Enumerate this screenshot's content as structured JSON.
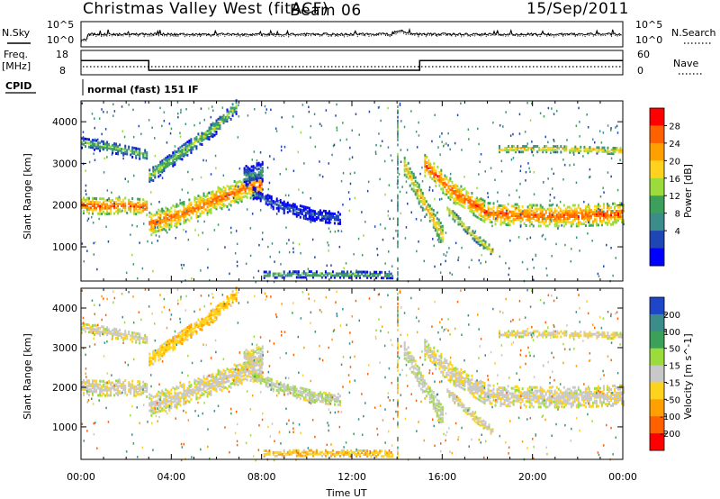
{
  "header": {
    "station": "Christmas Valley West (fitACF)",
    "beam": "Beam 06",
    "date": "15/Sep/2011"
  },
  "status_panels": {
    "nsky_label": "N.Sky",
    "nsearch_label": "N.Search",
    "freq_label_top": "Freq.",
    "freq_label_bottom": "[MHz]",
    "nave_label": "Nave",
    "cpid_label": "CPID",
    "cpid_value": "normal (fast) 151 IF",
    "noise_ticks": [
      "10^5",
      "10^0"
    ],
    "freq_ticks": [
      "18",
      "8"
    ],
    "nave_ticks": [
      "60",
      "0"
    ],
    "freq_step_hours": [
      0,
      3.0,
      15.0,
      24
    ],
    "freq_values_mhz": [
      16.2,
      10.2,
      16.2
    ]
  },
  "axes": {
    "xlabel": "Time UT",
    "x_ticks": [
      "00:00",
      "04:00",
      "08:00",
      "12:00",
      "16:00",
      "20:00",
      "00:00"
    ],
    "ylabel": "Slant Range [km]",
    "y_ticks": [
      "1000",
      "2000",
      "3000",
      "4000"
    ]
  },
  "power_colorbar": {
    "label": "Power [dB]",
    "ticks": [
      "28",
      "24",
      "20",
      "16",
      "12",
      "8",
      "4"
    ],
    "colors": [
      "#ff0000",
      "#ff6000",
      "#ffa000",
      "#ffd21e",
      "#9bdc3c",
      "#3ca05a",
      "#3c8c8c",
      "#1e46b4",
      "#0000ff"
    ]
  },
  "velocity_colorbar": {
    "label": "Velocity [m s^-1]",
    "ticks": [
      "200",
      "100",
      "50",
      "15",
      "-15",
      "-50",
      "-100",
      "-200"
    ],
    "colors": [
      "#1e46c8",
      "#3c8c8c",
      "#3ca05a",
      "#9bdc3c",
      "#c8c8c8",
      "#ffd21e",
      "#ffa000",
      "#ff6000",
      "#ff0000"
    ]
  },
  "chart_data": {
    "type": "heatmap",
    "x_range_hours": [
      0,
      24
    ],
    "y_range_km": [
      180,
      4500
    ],
    "series": [
      {
        "kind": "band",
        "hours": [
          0.0,
          1.0,
          2.0,
          2.9
        ],
        "center_km": [
          2000,
          1980,
          2000,
          1950
        ],
        "width_km": 380,
        "power": 27,
        "velocity": -5
      },
      {
        "kind": "band",
        "hours": [
          0.0,
          1.2,
          2.9
        ],
        "center_km": [
          3500,
          3400,
          3200
        ],
        "width_km": 250,
        "power": 14,
        "velocity": -5
      },
      {
        "kind": "band",
        "hours": [
          3.0,
          4.5,
          6.0,
          7.5,
          8.0
        ],
        "center_km": [
          1550,
          1800,
          2150,
          2450,
          2500
        ],
        "width_km": 550,
        "power": 26,
        "velocity": -5
      },
      {
        "kind": "band",
        "hours": [
          3.0,
          4.5,
          6.0,
          6.9
        ],
        "center_km": [
          2700,
          3300,
          3900,
          4400
        ],
        "width_km": 350,
        "power": 15,
        "velocity": -40
      },
      {
        "kind": "band",
        "hours": [
          7.2,
          8.0
        ],
        "center_km": [
          2700,
          2800
        ],
        "width_km": 450,
        "power": 10,
        "velocity": -5
      },
      {
        "kind": "band",
        "hours": [
          7.6,
          8.3,
          9.0,
          10.5,
          11.5
        ],
        "center_km": [
          2300,
          2100,
          1950,
          1750,
          1700
        ],
        "width_km": 300,
        "power": 6,
        "velocity": 10
      },
      {
        "kind": "band",
        "hours": [
          14.3,
          15.0,
          16.0
        ],
        "center_km": [
          2950,
          2200,
          1250
        ],
        "width_km": 450,
        "power": 22,
        "velocity": 10
      },
      {
        "kind": "band",
        "hours": [
          15.2,
          16.5,
          18.0,
          20.0,
          22.0,
          24.0
        ],
        "center_km": [
          2950,
          2300,
          1800,
          1750,
          1750,
          1800
        ],
        "width_km": 500,
        "power": 27,
        "velocity": -5
      },
      {
        "kind": "band",
        "hours": [
          16.2,
          17.5,
          18.2
        ],
        "center_km": [
          1900,
          1200,
          900
        ],
        "width_km": 200,
        "power": 20,
        "velocity": -5
      },
      {
        "kind": "band",
        "hours": [
          18.5,
          21.0,
          24.0
        ],
        "center_km": [
          3350,
          3350,
          3300
        ],
        "width_km": 150,
        "power": 22,
        "velocity": -10
      },
      {
        "kind": "band",
        "hours": [
          8.0,
          10.0,
          12.5,
          13.8
        ],
        "center_km": [
          330,
          340,
          330,
          320
        ],
        "width_km": 140,
        "power": 15,
        "velocity": -40
      }
    ]
  }
}
